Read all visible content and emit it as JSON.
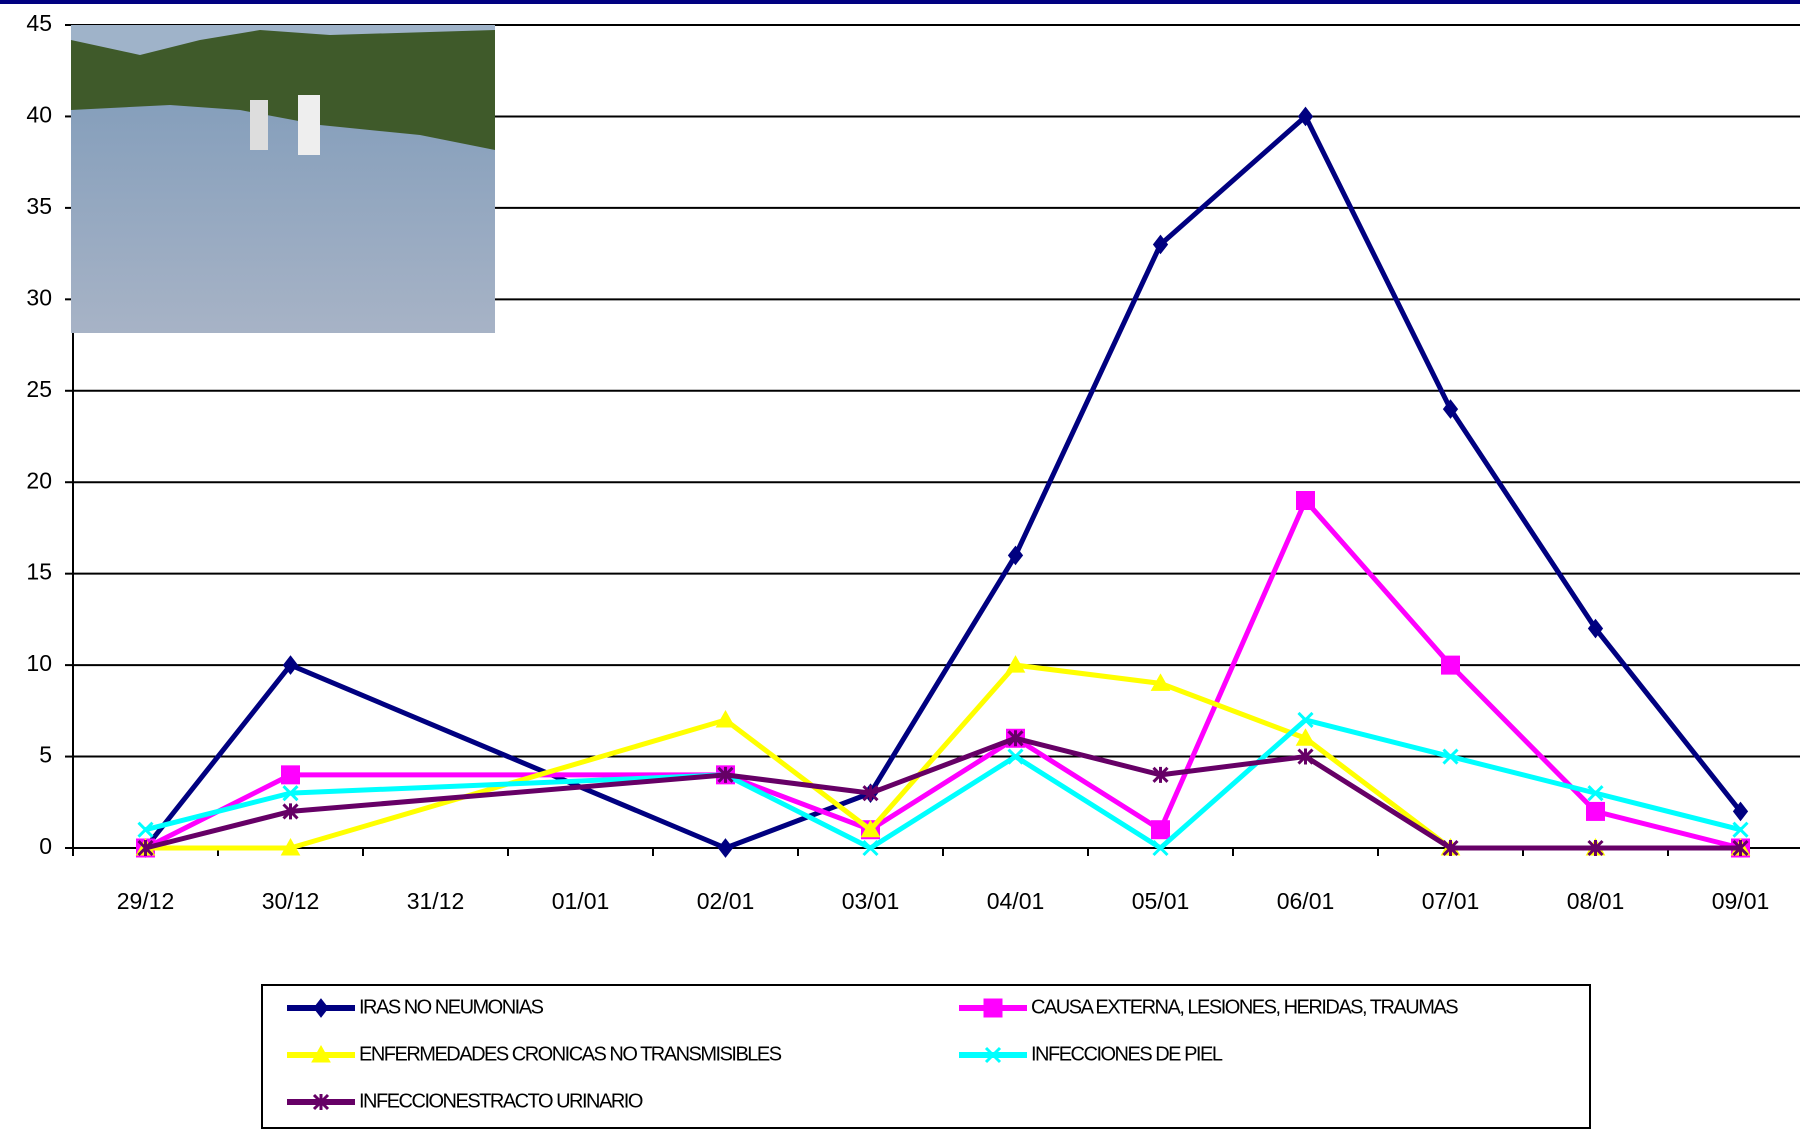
{
  "chart_data": {
    "type": "line",
    "categories": [
      "29/12",
      "30/12",
      "31/12",
      "01/01",
      "02/01",
      "03/01",
      "04/01",
      "05/01",
      "06/01",
      "07/01",
      "08/01",
      "09/01"
    ],
    "series": [
      {
        "name": "IRAS NO NEUMONIAS",
        "color": "#000080",
        "marker": "diamond",
        "values": [
          0,
          10,
          null,
          null,
          0,
          3,
          16,
          33,
          40,
          24,
          12,
          2
        ]
      },
      {
        "name": "CAUSA EXTERNA, LESIONES, HERIDAS, TRAUMAS",
        "color": "#ff00ff",
        "marker": "square",
        "values": [
          0,
          4,
          null,
          null,
          4,
          1,
          6,
          1,
          19,
          10,
          2,
          0
        ]
      },
      {
        "name": "ENFERMEDADES CRONICAS NO TRANSMISIBLES",
        "color": "#ffff00",
        "marker": "triangle",
        "values": [
          0,
          0,
          null,
          null,
          7,
          1,
          10,
          9,
          6,
          0,
          0,
          0
        ]
      },
      {
        "name": "INFECCIONES DE PIEL",
        "color": "#00ffff",
        "marker": "cross",
        "values": [
          1,
          3,
          null,
          null,
          4,
          0,
          5,
          0,
          7,
          5,
          3,
          1
        ]
      },
      {
        "name": "INFECCIONESTRACTO URINARIO",
        "color": "#660066",
        "marker": "star",
        "values": [
          0,
          2,
          null,
          null,
          4,
          3,
          6,
          4,
          5,
          0,
          0,
          0
        ]
      }
    ],
    "ylim": [
      0,
      45
    ],
    "yticks": [
      0,
      5,
      10,
      15,
      20,
      25,
      30,
      35,
      40,
      45
    ],
    "grid": true,
    "span_gaps": true,
    "legend": "bottom"
  }
}
